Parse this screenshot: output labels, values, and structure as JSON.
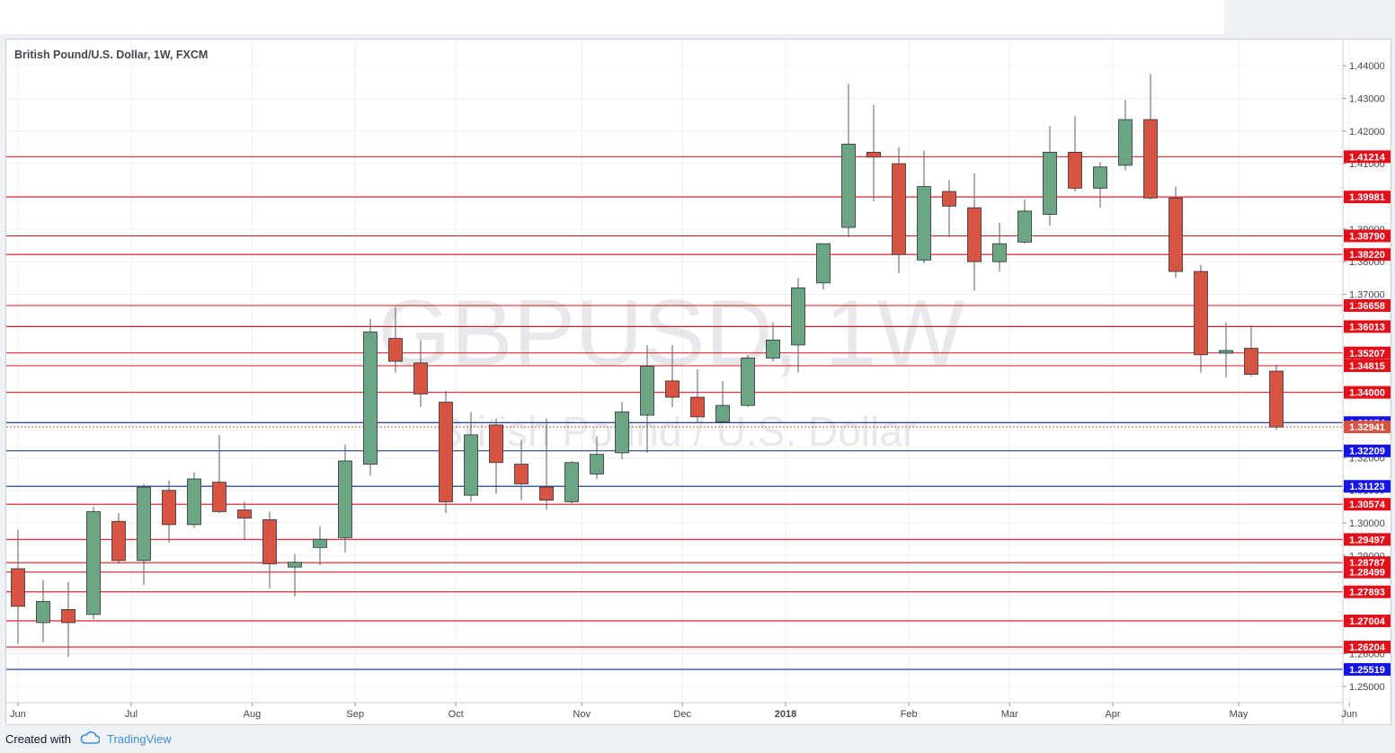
{
  "header": {
    "symbol_title": "British Pound/U.S. Dollar, 1W, FXCM"
  },
  "watermark": {
    "symbol": "GBPUSD, 1W",
    "description": "British Pound / U.S. Dollar"
  },
  "footer": {
    "created_with": "Created with",
    "brand": "TradingView"
  },
  "colors": {
    "up": "#6ba583",
    "down": "#d75442",
    "resistance_line": "#e3101b",
    "support_line": "#0a2a8a",
    "support_label": "#1414e6",
    "current_price_label": "#d75442"
  },
  "chart_data": {
    "type": "candlestick",
    "title": "British Pound/U.S. Dollar, 1W, FXCM",
    "timeframe": "1W",
    "y_axis": {
      "range": [
        1.245,
        1.448
      ],
      "ticks": [
        "1.25000",
        "1.26000",
        "1.27000",
        "1.28000",
        "1.29000",
        "1.30000",
        "1.31000",
        "1.32000",
        "1.33000",
        "1.34000",
        "1.35000",
        "1.36000",
        "1.37000",
        "1.38000",
        "1.39000",
        "1.40000",
        "1.41000",
        "1.42000",
        "1.43000",
        "1.44000"
      ]
    },
    "x_axis": {
      "labels": [
        {
          "label": "Jun",
          "week": 0
        },
        {
          "label": "Jul",
          "week": 4.5
        },
        {
          "label": "Aug",
          "week": 9.3
        },
        {
          "label": "Sep",
          "week": 13.4
        },
        {
          "label": "Oct",
          "week": 17.4
        },
        {
          "label": "Nov",
          "week": 22.4
        },
        {
          "label": "Dec",
          "week": 26.4
        },
        {
          "label": "2018",
          "week": 30.5
        },
        {
          "label": "Feb",
          "week": 35.4
        },
        {
          "label": "Mar",
          "week": 39.4
        },
        {
          "label": "Apr",
          "week": 43.5
        },
        {
          "label": "May",
          "week": 48.5
        },
        {
          "label": "Jun",
          "week": 52.9
        }
      ]
    },
    "candles": [
      {
        "o": 1.286,
        "h": 1.298,
        "l": 1.263,
        "c": 1.2745
      },
      {
        "o": 1.2695,
        "h": 1.2825,
        "l": 1.2635,
        "c": 1.276
      },
      {
        "o": 1.2735,
        "h": 1.282,
        "l": 1.259,
        "c": 1.2695
      },
      {
        "o": 1.272,
        "h": 1.305,
        "l": 1.2705,
        "c": 1.3035
      },
      {
        "o": 1.3005,
        "h": 1.303,
        "l": 1.2875,
        "c": 1.2885
      },
      {
        "o": 1.2885,
        "h": 1.312,
        "l": 1.281,
        "c": 1.311
      },
      {
        "o": 1.31,
        "h": 1.313,
        "l": 1.294,
        "c": 1.2995
      },
      {
        "o": 1.2995,
        "h": 1.3155,
        "l": 1.2985,
        "c": 1.3135
      },
      {
        "o": 1.3125,
        "h": 1.327,
        "l": 1.303,
        "c": 1.3035
      },
      {
        "o": 1.304,
        "h": 1.3065,
        "l": 1.295,
        "c": 1.3015
      },
      {
        "o": 1.301,
        "h": 1.3035,
        "l": 1.28,
        "c": 1.2875
      },
      {
        "o": 1.2865,
        "h": 1.2905,
        "l": 1.2775,
        "c": 1.288
      },
      {
        "o": 1.2925,
        "h": 1.299,
        "l": 1.287,
        "c": 1.295
      },
      {
        "o": 1.2955,
        "h": 1.324,
        "l": 1.291,
        "c": 1.319
      },
      {
        "o": 1.318,
        "h": 1.3625,
        "l": 1.3145,
        "c": 1.3585
      },
      {
        "o": 1.3565,
        "h": 1.366,
        "l": 1.346,
        "c": 1.3495
      },
      {
        "o": 1.349,
        "h": 1.356,
        "l": 1.3355,
        "c": 1.3395
      },
      {
        "o": 1.337,
        "h": 1.3405,
        "l": 1.303,
        "c": 1.3065
      },
      {
        "o": 1.3085,
        "h": 1.334,
        "l": 1.3065,
        "c": 1.327
      },
      {
        "o": 1.33,
        "h": 1.332,
        "l": 1.309,
        "c": 1.3185
      },
      {
        "o": 1.318,
        "h": 1.3255,
        "l": 1.307,
        "c": 1.312
      },
      {
        "o": 1.311,
        "h": 1.332,
        "l": 1.304,
        "c": 1.307
      },
      {
        "o": 1.3065,
        "h": 1.319,
        "l": 1.306,
        "c": 1.3185
      },
      {
        "o": 1.315,
        "h": 1.3265,
        "l": 1.3135,
        "c": 1.321
      },
      {
        "o": 1.3215,
        "h": 1.337,
        "l": 1.3195,
        "c": 1.334
      },
      {
        "o": 1.333,
        "h": 1.3545,
        "l": 1.3215,
        "c": 1.348
      },
      {
        "o": 1.3435,
        "h": 1.3545,
        "l": 1.3355,
        "c": 1.3385
      },
      {
        "o": 1.3385,
        "h": 1.347,
        "l": 1.3305,
        "c": 1.3325
      },
      {
        "o": 1.331,
        "h": 1.3435,
        "l": 1.3305,
        "c": 1.336
      },
      {
        "o": 1.336,
        "h": 1.3515,
        "l": 1.3355,
        "c": 1.3505
      },
      {
        "o": 1.3505,
        "h": 1.3615,
        "l": 1.3495,
        "c": 1.356
      },
      {
        "o": 1.3545,
        "h": 1.375,
        "l": 1.346,
        "c": 1.372
      },
      {
        "o": 1.3735,
        "h": 1.3855,
        "l": 1.3715,
        "c": 1.3855
      },
      {
        "o": 1.3905,
        "h": 1.4345,
        "l": 1.3875,
        "c": 1.416
      },
      {
        "o": 1.4135,
        "h": 1.428,
        "l": 1.3985,
        "c": 1.412
      },
      {
        "o": 1.41,
        "h": 1.415,
        "l": 1.3765,
        "c": 1.3822
      },
      {
        "o": 1.3805,
        "h": 1.414,
        "l": 1.3795,
        "c": 1.403
      },
      {
        "o": 1.4015,
        "h": 1.405,
        "l": 1.3875,
        "c": 1.397
      },
      {
        "o": 1.3965,
        "h": 1.407,
        "l": 1.3712,
        "c": 1.38
      },
      {
        "o": 1.38,
        "h": 1.392,
        "l": 1.377,
        "c": 1.3855
      },
      {
        "o": 1.386,
        "h": 1.399,
        "l": 1.3855,
        "c": 1.3955
      },
      {
        "o": 1.3945,
        "h": 1.4215,
        "l": 1.391,
        "c": 1.4135
      },
      {
        "o": 1.4135,
        "h": 1.4245,
        "l": 1.4015,
        "c": 1.4025
      },
      {
        "o": 1.4025,
        "h": 1.4105,
        "l": 1.3965,
        "c": 1.409
      },
      {
        "o": 1.4095,
        "h": 1.4295,
        "l": 1.408,
        "c": 1.4235
      },
      {
        "o": 1.4235,
        "h": 1.4375,
        "l": 1.399,
        "c": 1.3995
      },
      {
        "o": 1.3995,
        "h": 1.403,
        "l": 1.375,
        "c": 1.377
      },
      {
        "o": 1.377,
        "h": 1.379,
        "l": 1.346,
        "c": 1.3515
      },
      {
        "o": 1.352,
        "h": 1.3615,
        "l": 1.3445,
        "c": 1.3528
      },
      {
        "o": 1.3535,
        "h": 1.3605,
        "l": 1.345,
        "c": 1.3455
      },
      {
        "o": 1.3465,
        "h": 1.3485,
        "l": 1.3285,
        "c": 1.3294
      }
    ],
    "horizontal_levels": [
      {
        "value": 1.41214,
        "label": "1.41214",
        "kind": "resistance"
      },
      {
        "value": 1.39981,
        "label": "1.39981",
        "kind": "resistance"
      },
      {
        "value": 1.3879,
        "label": "1.38790",
        "kind": "resistance"
      },
      {
        "value": 1.3822,
        "label": "1.38220",
        "kind": "resistance"
      },
      {
        "value": 1.36658,
        "label": "1.36658",
        "kind": "resistance"
      },
      {
        "value": 1.36013,
        "label": "1.36013",
        "kind": "resistance"
      },
      {
        "value": 1.35207,
        "label": "1.35207",
        "kind": "resistance"
      },
      {
        "value": 1.34815,
        "label": "1.34815",
        "kind": "resistance"
      },
      {
        "value": 1.34,
        "label": "1.34000",
        "kind": "resistance"
      },
      {
        "value": 1.33074,
        "label": "1.33074",
        "kind": "support"
      },
      {
        "value": 1.32209,
        "label": "1.32209",
        "kind": "support"
      },
      {
        "value": 1.31123,
        "label": "1.31123",
        "kind": "support"
      },
      {
        "value": 1.30574,
        "label": "1.30574",
        "kind": "resistance"
      },
      {
        "value": 1.29497,
        "label": "1.29497",
        "kind": "resistance"
      },
      {
        "value": 1.28787,
        "label": "1.28787",
        "kind": "resistance"
      },
      {
        "value": 1.28499,
        "label": "1.28499",
        "kind": "resistance"
      },
      {
        "value": 1.27893,
        "label": "1.27893",
        "kind": "resistance"
      },
      {
        "value": 1.27004,
        "label": "1.27004",
        "kind": "resistance"
      },
      {
        "value": 1.26204,
        "label": "1.26204",
        "kind": "resistance"
      },
      {
        "value": 1.25519,
        "label": "1.25519",
        "kind": "support"
      }
    ],
    "current_price": {
      "value": 1.32941,
      "label": "1.32941"
    },
    "grid": true
  }
}
